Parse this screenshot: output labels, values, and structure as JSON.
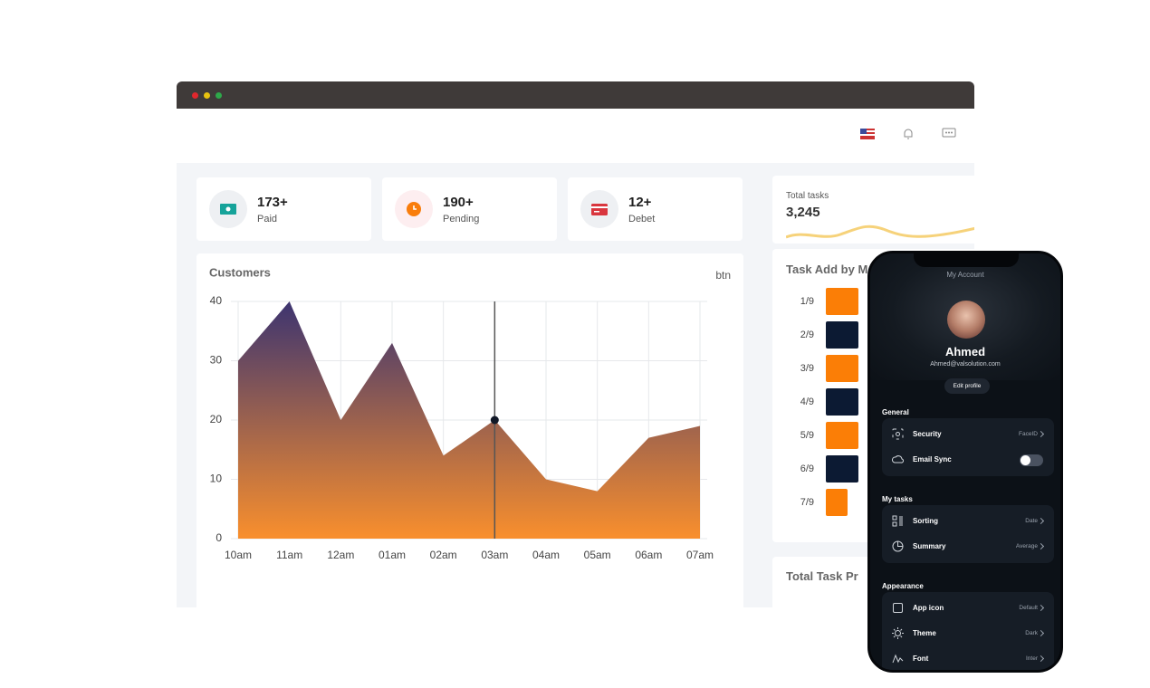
{
  "stats": [
    {
      "value": "173+",
      "label": "Paid"
    },
    {
      "value": "190+",
      "label": "Pending"
    },
    {
      "value": "12+",
      "label": "Debet"
    }
  ],
  "chart_data": {
    "type": "area",
    "title": "Customers",
    "button": "btn",
    "categories": [
      "10am",
      "11am",
      "12am",
      "01am",
      "02am",
      "03am",
      "04am",
      "05am",
      "06am",
      "07am"
    ],
    "values": [
      30,
      40,
      20,
      33,
      14,
      20,
      10,
      8,
      17,
      19
    ],
    "ylim": [
      0,
      40
    ],
    "yticks": [
      0,
      10,
      20,
      30,
      40
    ],
    "grid": true,
    "colors": [
      "#3d3470",
      "#f98f2d"
    ]
  },
  "total_tasks": {
    "label": "Total tasks",
    "value": "3,245"
  },
  "task_add": {
    "title": "Task Add by M",
    "categories": [
      "1/9",
      "2/9",
      "3/9",
      "4/9",
      "5/9",
      "6/9",
      "7/9"
    ]
  },
  "task_progress": {
    "title": "Total Task Pr"
  },
  "phone": {
    "header": "My Account",
    "name": "Ahmed",
    "email": "Ahmed@valsolution.com",
    "edit": "Edit profile",
    "sections": [
      {
        "title": "General",
        "rows": [
          {
            "label": "Security",
            "value": "FaceID"
          },
          {
            "label": "Email Sync"
          }
        ]
      },
      {
        "title": "My tasks",
        "rows": [
          {
            "label": "Sorting",
            "value": "Date"
          },
          {
            "label": "Summary",
            "value": "Average"
          }
        ]
      },
      {
        "title": "Appearance",
        "rows": [
          {
            "label": "App icon",
            "value": "Default"
          },
          {
            "label": "Theme",
            "value": "Dark"
          },
          {
            "label": "Font",
            "value": "Inter"
          }
        ]
      }
    ]
  }
}
